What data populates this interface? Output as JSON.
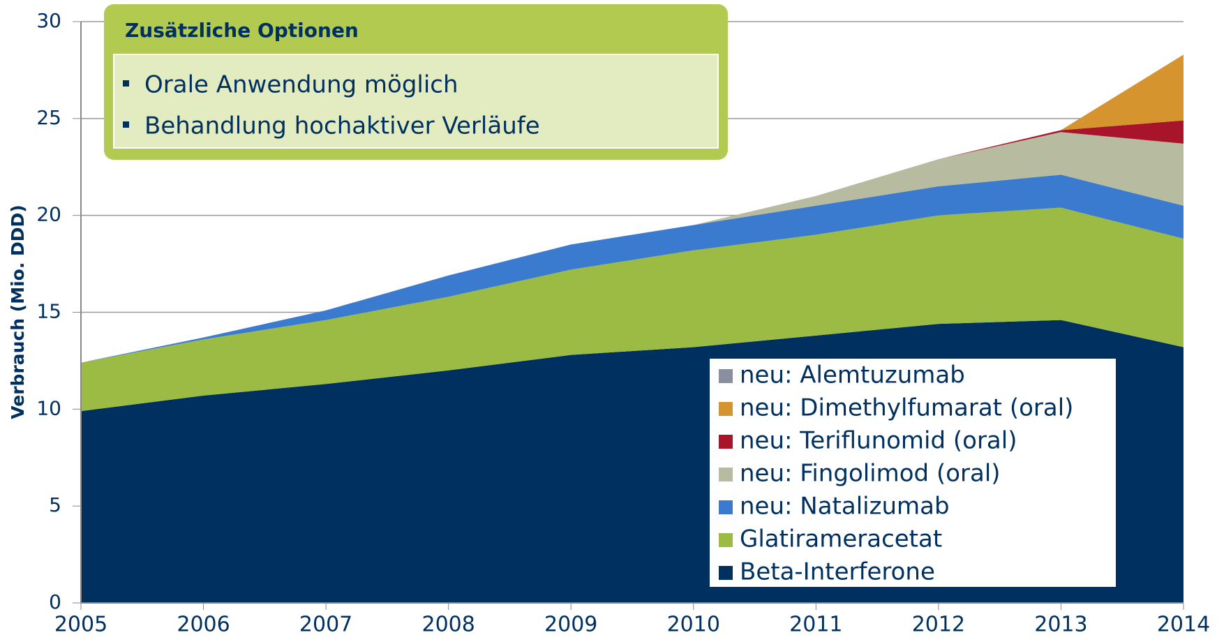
{
  "chart_data": {
    "type": "stacked_area",
    "ylabel": "Verbrauch (Mio. DDD)",
    "annotation": {
      "title": "Zusätzliche Optionen",
      "items": [
        "Orale Anwendung möglich",
        "Behandlung hochaktiver Verläufe"
      ]
    },
    "categories": [
      "2005",
      "2006",
      "2007",
      "2008",
      "2009",
      "2010",
      "2011",
      "2012",
      "2013",
      "2014"
    ],
    "series": [
      {
        "name": "Beta-Interferone",
        "color": "#003060",
        "values": [
          9.9,
          10.7,
          11.3,
          12.0,
          12.8,
          13.2,
          13.8,
          14.4,
          14.6,
          13.2
        ]
      },
      {
        "name": "Glatirameracetat",
        "color": "#9bbb45",
        "values": [
          2.5,
          2.9,
          3.3,
          3.8,
          4.4,
          5.0,
          5.2,
          5.6,
          5.8,
          5.6
        ]
      },
      {
        "name": "neu: Natalizumab",
        "color": "#3a7bcf",
        "values": [
          0,
          0.1,
          0.5,
          1.1,
          1.3,
          1.3,
          1.5,
          1.5,
          1.7,
          1.7
        ]
      },
      {
        "name": "neu: Fingolimod (oral)",
        "color": "#b7bb9f",
        "values": [
          0,
          0,
          0,
          0,
          0,
          0,
          0.5,
          1.4,
          2.2,
          3.2
        ]
      },
      {
        "name": "neu: Teriflunomid (oral)",
        "color": "#a8142a",
        "values": [
          0,
          0,
          0,
          0,
          0,
          0,
          0,
          0,
          0.1,
          1.2
        ]
      },
      {
        "name": "neu: Dimethylfumarat (oral)",
        "color": "#d6942e",
        "values": [
          0,
          0,
          0,
          0,
          0,
          0,
          0,
          0,
          0,
          3.4
        ]
      },
      {
        "name": "neu: Alemtuzumab",
        "color": "#8a8fa0",
        "values": [
          0,
          0,
          0,
          0,
          0,
          0,
          0,
          0,
          0,
          0
        ]
      }
    ],
    "ylim": [
      0,
      30
    ],
    "yticks": [
      0,
      5,
      10,
      15,
      20,
      25,
      30
    ],
    "grid": true,
    "legend": "bottom-right"
  }
}
